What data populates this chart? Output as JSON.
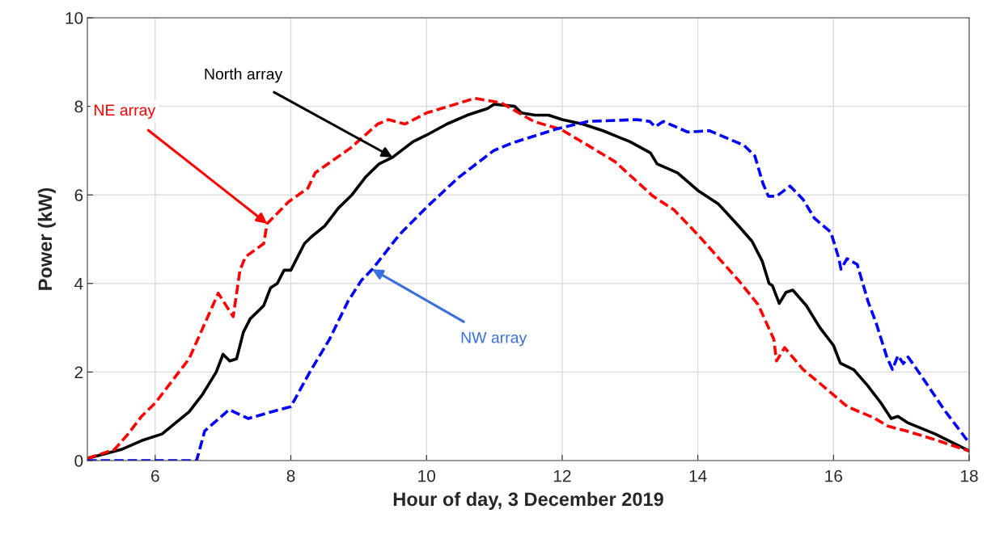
{
  "chart_data": {
    "type": "line",
    "xlabel": "Hour of day, 3 December 2019",
    "ylabel": "Power (kW)",
    "xlim": [
      5,
      18
    ],
    "xticks": [
      6,
      8,
      10,
      12,
      14,
      16,
      18
    ],
    "ylim": [
      0,
      10
    ],
    "yticks": [
      0,
      2,
      4,
      6,
      8,
      10
    ],
    "grid": true,
    "series": [
      {
        "color": "#000000",
        "line_style": "solid",
        "x": [
          5.0,
          5.5,
          5.8,
          6.1,
          6.3,
          6.5,
          6.7,
          6.9,
          7.0,
          7.1,
          7.2,
          7.3,
          7.4,
          7.6,
          7.7,
          7.8,
          7.9,
          8.0,
          8.1,
          8.2,
          8.3,
          8.5,
          8.7,
          8.9,
          9.1,
          9.3,
          9.5,
          9.8,
          10.0,
          10.3,
          10.6,
          10.9,
          11.0,
          11.3,
          11.4,
          11.6,
          11.8,
          12.0,
          12.3,
          12.6,
          13.0,
          13.3,
          13.4,
          13.7,
          14.0,
          14.3,
          14.6,
          14.8,
          14.95,
          15.05,
          15.1,
          15.2,
          15.3,
          15.4,
          15.6,
          15.8,
          16.0,
          16.1,
          16.3,
          16.5,
          16.7,
          16.85,
          16.95,
          17.1,
          17.5,
          18.0
        ],
        "values": [
          0.05,
          0.25,
          0.45,
          0.6,
          0.85,
          1.1,
          1.5,
          2.0,
          2.4,
          2.25,
          2.3,
          2.9,
          3.2,
          3.5,
          3.9,
          4.0,
          4.3,
          4.3,
          4.6,
          4.9,
          5.05,
          5.3,
          5.7,
          6.0,
          6.4,
          6.7,
          6.85,
          7.2,
          7.35,
          7.6,
          7.8,
          7.95,
          8.05,
          8.0,
          7.85,
          7.8,
          7.8,
          7.7,
          7.6,
          7.45,
          7.2,
          6.95,
          6.7,
          6.5,
          6.1,
          5.8,
          5.3,
          4.95,
          4.5,
          4.0,
          3.95,
          3.55,
          3.8,
          3.85,
          3.5,
          3.0,
          2.6,
          2.2,
          2.05,
          1.7,
          1.3,
          0.95,
          1.0,
          0.85,
          0.6,
          0.22
        ]
      },
      {
        "color": "#ff0000",
        "line_style": "dashed",
        "x": [
          5.0,
          5.4,
          5.6,
          5.8,
          6.0,
          6.2,
          6.5,
          6.93,
          7.15,
          7.25,
          7.33,
          7.6,
          7.65,
          7.97,
          8.25,
          8.36,
          8.88,
          9.28,
          9.44,
          9.68,
          10.0,
          10.71,
          11.1,
          11.58,
          11.98,
          12.38,
          12.78,
          13.34,
          13.65,
          14.0,
          14.6,
          14.89,
          15.12,
          15.16,
          15.28,
          15.55,
          15.88,
          16.2,
          16.59,
          16.8,
          17.07,
          17.46,
          17.99
        ],
        "values": [
          0.05,
          0.25,
          0.6,
          1.0,
          1.3,
          1.7,
          2.3,
          3.78,
          3.25,
          4.3,
          4.6,
          4.9,
          5.35,
          5.85,
          6.15,
          6.5,
          7.06,
          7.6,
          7.7,
          7.6,
          7.85,
          8.18,
          8.08,
          7.66,
          7.48,
          7.12,
          6.75,
          5.97,
          5.66,
          5.1,
          4.07,
          3.52,
          2.74,
          2.25,
          2.55,
          2.06,
          1.64,
          1.22,
          0.97,
          0.78,
          0.67,
          0.49,
          0.22
        ]
      },
      {
        "color": "#0000ff",
        "line_style": "dashed",
        "x": [
          5.0,
          6.61,
          6.73,
          7.09,
          7.37,
          7.69,
          8.0,
          8.28,
          8.57,
          8.84,
          9.04,
          9.2,
          9.6,
          10.0,
          10.47,
          10.99,
          11.26,
          11.9,
          12.38,
          13.1,
          13.29,
          13.37,
          13.49,
          13.85,
          14.17,
          14.68,
          14.84,
          14.96,
          15.04,
          15.16,
          15.36,
          15.55,
          15.72,
          15.96,
          16.08,
          16.11,
          16.2,
          16.35,
          16.51,
          16.63,
          16.79,
          16.87,
          16.95,
          17.03,
          17.1,
          17.31,
          17.63,
          17.99
        ],
        "values": [
          0.0,
          0.0,
          0.67,
          1.15,
          0.95,
          1.09,
          1.22,
          2.0,
          2.74,
          3.59,
          4.07,
          4.32,
          5.1,
          5.72,
          6.39,
          7.0,
          7.17,
          7.48,
          7.66,
          7.7,
          7.66,
          7.54,
          7.66,
          7.42,
          7.45,
          7.12,
          6.88,
          6.26,
          5.97,
          5.97,
          6.2,
          5.9,
          5.47,
          5.16,
          4.56,
          4.32,
          4.56,
          4.43,
          3.59,
          3.1,
          2.32,
          2.06,
          2.37,
          2.19,
          2.34,
          1.88,
          1.15,
          0.42
        ]
      }
    ],
    "annotations": [
      {
        "text": "North array",
        "x": 9.5,
        "y": 6.85
      },
      {
        "text": "NE array",
        "x": 7.65,
        "y": 5.35
      },
      {
        "text": "NW array",
        "x": 9.2,
        "y": 4.32
      }
    ]
  }
}
